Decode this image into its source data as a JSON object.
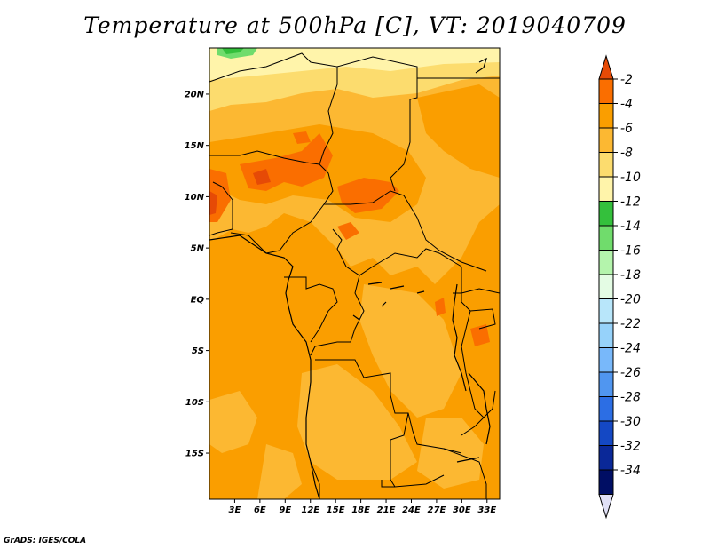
{
  "title": "Temperature at 500hPa [C], VT: 2019040709",
  "footer": "GrADS: IGES/COLA",
  "map": {
    "lon_range": [
      0,
      34.5
    ],
    "lat_range": [
      -19.5,
      24.5
    ],
    "lat_ticks": [
      {
        "value": 20,
        "label": "20N"
      },
      {
        "value": 15,
        "label": "15N"
      },
      {
        "value": 10,
        "label": "10N"
      },
      {
        "value": 5,
        "label": "5N"
      },
      {
        "value": 0,
        "label": "EQ"
      },
      {
        "value": -5,
        "label": "5S"
      },
      {
        "value": -10,
        "label": "10S"
      },
      {
        "value": -15,
        "label": "15S"
      }
    ],
    "lon_ticks": [
      {
        "value": 3,
        "label": "3E"
      },
      {
        "value": 6,
        "label": "6E"
      },
      {
        "value": 9,
        "label": "9E"
      },
      {
        "value": 12,
        "label": "12E"
      },
      {
        "value": 15,
        "label": "15E"
      },
      {
        "value": 18,
        "label": "18E"
      },
      {
        "value": 21,
        "label": "21E"
      },
      {
        "value": 24,
        "label": "24E"
      },
      {
        "value": 27,
        "label": "27E"
      },
      {
        "value": 30,
        "label": "30E"
      },
      {
        "value": 33,
        "label": "33E"
      }
    ]
  },
  "colorbar": {
    "labels": [
      "-2",
      "-4",
      "-6",
      "-8",
      "-10",
      "-12",
      "-14",
      "-16",
      "-18",
      "-20",
      "-22",
      "-24",
      "-26",
      "-28",
      "-30",
      "-32",
      "-34"
    ],
    "colors": [
      "#e64a06",
      "#fa6e00",
      "#fa9e00",
      "#fcb832",
      "#fcdc6e",
      "#fff4aa",
      "#34c03c",
      "#70dc6c",
      "#b4f4ac",
      "#e4fce4",
      "#b8e6fa",
      "#96d2fa",
      "#78b8fa",
      "#5096f0",
      "#2c6ee4",
      "#1448c4",
      "#0a2898",
      "#000e64",
      "#e0e0f6"
    ]
  }
}
